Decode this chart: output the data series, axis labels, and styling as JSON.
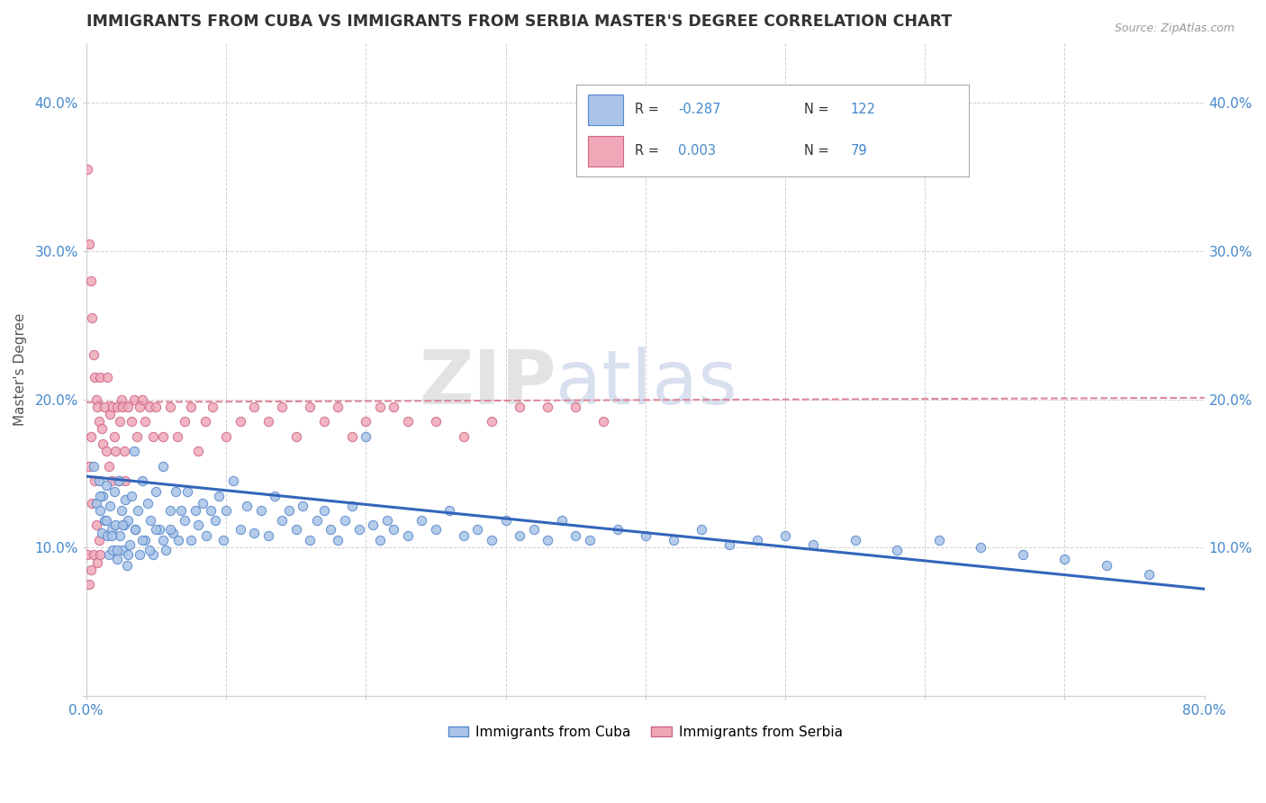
{
  "title": "IMMIGRANTS FROM CUBA VS IMMIGRANTS FROM SERBIA MASTER'S DEGREE CORRELATION CHART",
  "source": "Source: ZipAtlas.com",
  "ylabel": "Master's Degree",
  "xlim": [
    0.0,
    0.8
  ],
  "ylim": [
    0.0,
    0.44
  ],
  "cuba_color": "#aac4e8",
  "cuba_edge_color": "#5588cc",
  "serbia_color": "#f0a8b8",
  "serbia_edge_color": "#cc6688",
  "cuba_R": -0.287,
  "cuba_N": 122,
  "serbia_R": 0.003,
  "serbia_N": 79,
  "legend_label_cuba": "Immigrants from Cuba",
  "legend_label_serbia": "Immigrants from Serbia",
  "watermark_zip": "ZIP",
  "watermark_atlas": "atlas",
  "background_color": "#ffffff",
  "grid_color": "#cccccc",
  "title_color": "#333333",
  "axis_label_color": "#555555",
  "tick_label_color": "#4488cc",
  "trend_blue_color": "#3366bb",
  "trend_pink_color": "#dd8899",
  "cuba_line_start_y": 0.148,
  "cuba_line_end_y": 0.072,
  "serbia_line_start_y": 0.198,
  "serbia_line_end_y": 0.201
}
